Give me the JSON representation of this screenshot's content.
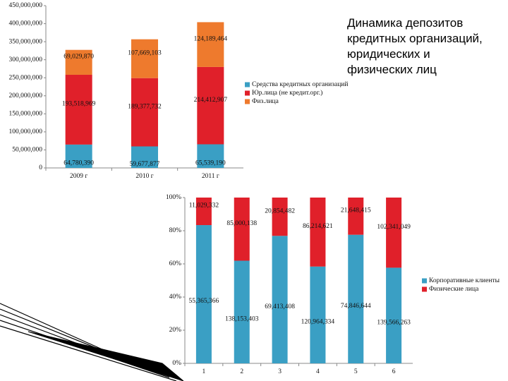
{
  "title": "Динамика депозитов кредитных организаций, юридических и физических лиц",
  "chart_data": [
    {
      "type": "bar",
      "stacked": true,
      "normalized": false,
      "grid": false,
      "legend": "right",
      "categories": [
        "2009 г",
        "2010 г",
        "2011 г"
      ],
      "ylim": [
        0,
        450000000
      ],
      "yticks": [
        0,
        {
          "value": 50000000,
          "label": "50,000,000"
        },
        {
          "value": 100000000,
          "label": "100,000,000"
        },
        {
          "value": 150000000,
          "label": "150,000,000"
        },
        {
          "value": 200000000,
          "label": "200,000,000"
        },
        {
          "value": 250000000,
          "label": "250,000,000"
        },
        {
          "value": 300000000,
          "label": "300,000,000"
        },
        {
          "value": 350000000,
          "label": "350,000,000"
        },
        {
          "value": 400000000,
          "label": "400,000,000"
        },
        {
          "value": 450000000,
          "label": "450,000,000"
        }
      ],
      "series": [
        {
          "name": "Средства кредитных организаций",
          "color": "#3a9fc4",
          "values": [
            64780390,
            59677877,
            65539190
          ],
          "value_labels": [
            "64,780,390",
            "59,677,877",
            "65,539,190"
          ]
        },
        {
          "name": "Юр.лица (не кредит.орг.)",
          "color": "#e0202a",
          "values": [
            193518969,
            189377732,
            214412907
          ],
          "value_labels": [
            "193,518,969",
            "189,377,732",
            "214,412,907"
          ]
        },
        {
          "name": "Физ.лица",
          "color": "#ee7a2d",
          "values": [
            69029870,
            107669103,
            124189464
          ],
          "value_labels": [
            "69,029,870",
            "107,669,103",
            "124,189,464"
          ]
        }
      ]
    },
    {
      "type": "bar",
      "stacked": true,
      "normalized": true,
      "grid": false,
      "legend": "right",
      "categories": [
        "1",
        "2",
        "3",
        "4",
        "5",
        "6"
      ],
      "ylim": [
        0,
        100
      ],
      "yticks": [
        {
          "value": 0,
          "label": "0%"
        },
        {
          "value": 20,
          "label": "20%"
        },
        {
          "value": 40,
          "label": "40%"
        },
        {
          "value": 60,
          "label": "60%"
        },
        {
          "value": 80,
          "label": "80%"
        },
        {
          "value": 100,
          "label": "100%"
        }
      ],
      "series": [
        {
          "name": "Корпоративные клиенты",
          "color": "#3a9fc4",
          "values": [
            55365366,
            138153403,
            69413408,
            120964334,
            74846644,
            139566263
          ],
          "value_labels": [
            "55,365,366",
            "138,153,403",
            "69,413,408",
            "120,964,334",
            "74,846,644",
            "139,566,263"
          ]
        },
        {
          "name": "Физические лица",
          "color": "#e0202a",
          "values": [
            11029332,
            85000138,
            20854482,
            86214621,
            21648415,
            102341049
          ],
          "value_labels": [
            "11,029,332",
            "85,000,138",
            "20,854,482",
            "86,214,621",
            "21,648,415",
            "102,341,049"
          ]
        }
      ]
    }
  ]
}
